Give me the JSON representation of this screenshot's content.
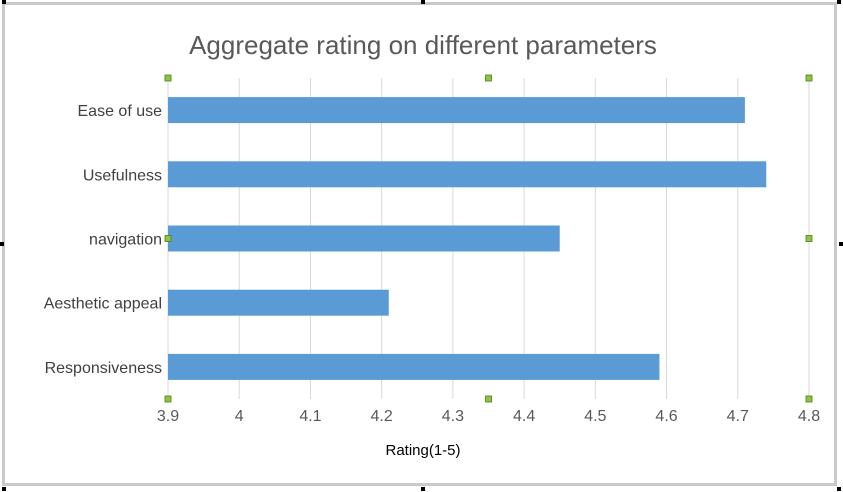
{
  "chart_data": {
    "type": "bar",
    "orientation": "horizontal",
    "title": "Aggregate rating on different parameters",
    "categories": [
      "Ease of use",
      "Usefulness",
      "navigation",
      "Aesthetic appeal",
      "Responsiveness"
    ],
    "values": [
      4.71,
      4.74,
      4.45,
      4.21,
      4.59
    ],
    "xlabel": "Rating(1-5)",
    "ylabel": "",
    "xlim": [
      3.9,
      4.8
    ],
    "xticks": [
      "3.9",
      "4",
      "4.1",
      "4.2",
      "4.3",
      "4.4",
      "4.5",
      "4.6",
      "4.7",
      "4.8"
    ],
    "grid": "vertical",
    "legend": "none",
    "colors": {
      "bar": "#5b9bd5",
      "grid": "#d9d9d9",
      "selection_handle": "#8cc63f"
    }
  }
}
